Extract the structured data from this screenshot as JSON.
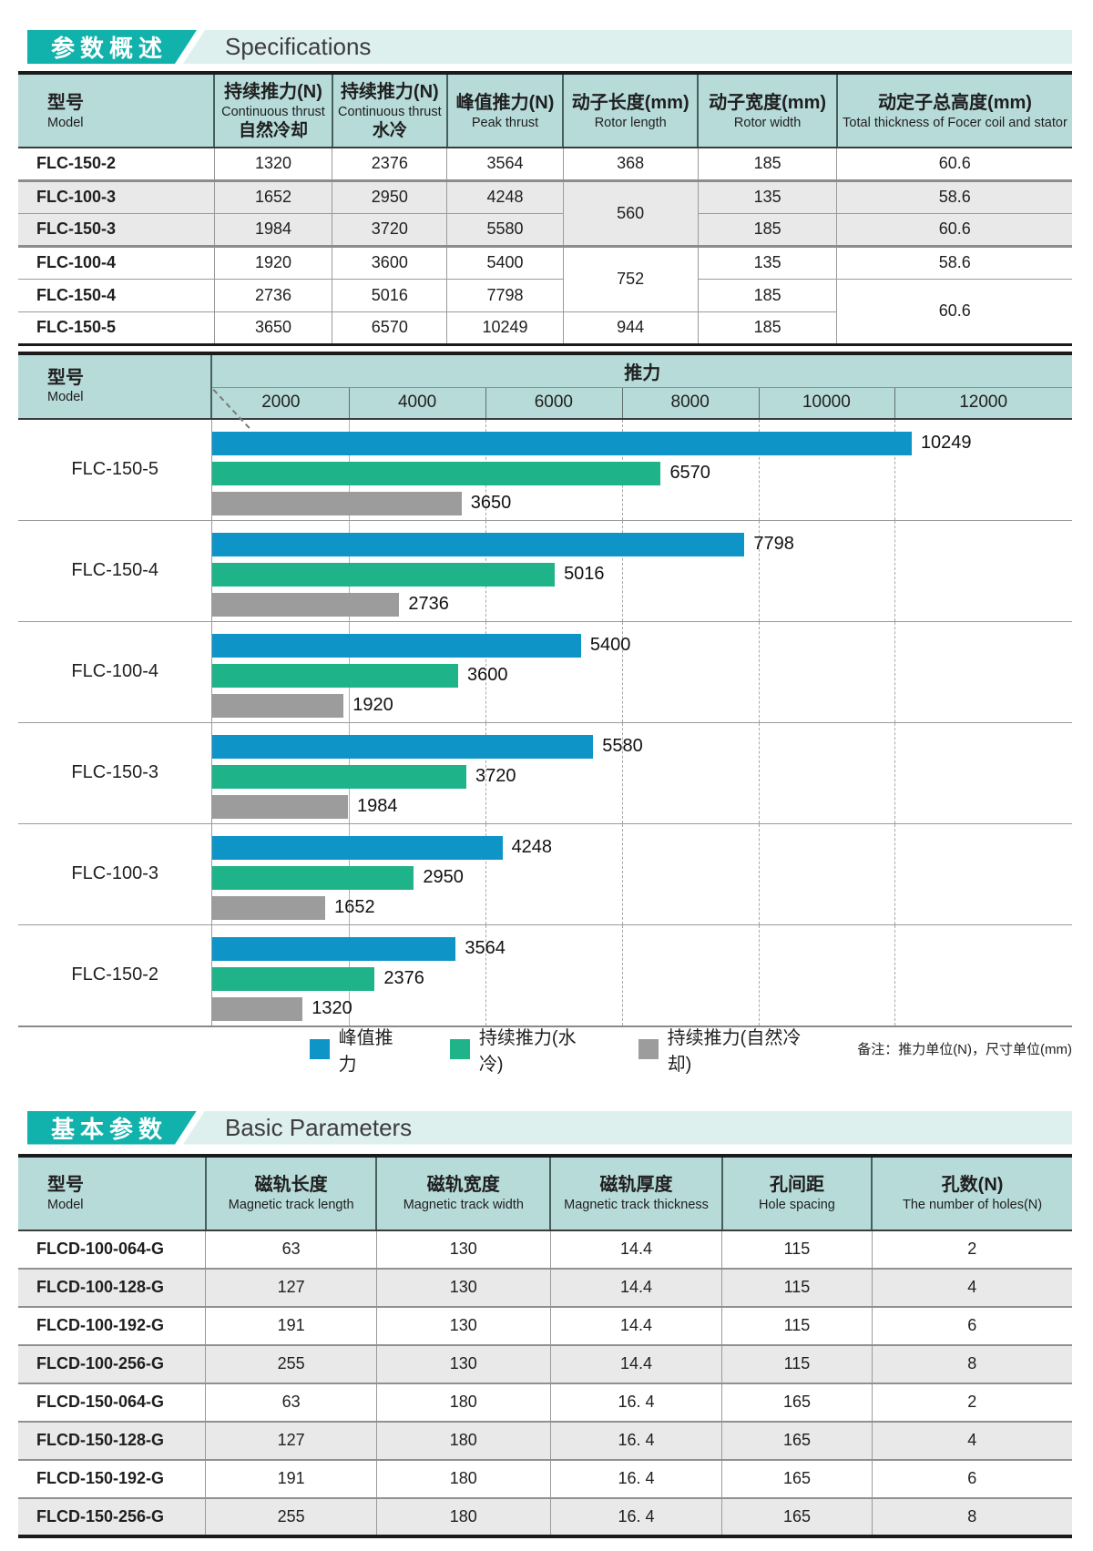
{
  "sections": {
    "spec": {
      "badge": "参数概述",
      "title": "Specifications"
    },
    "basic": {
      "badge": "基本参数",
      "title": "Basic Parameters"
    }
  },
  "spec_table": {
    "columns": {
      "model": {
        "zh": "型号",
        "en": "Model"
      },
      "thrust_natural": {
        "zh": "持续推力(N)",
        "en": "Continuous thrust",
        "sub": "自然冷却"
      },
      "thrust_water": {
        "zh": "持续推力(N)",
        "en": "Continuous thrust",
        "sub": "水冷"
      },
      "peak": {
        "zh": "峰值推力(N)",
        "en": "Peak thrust"
      },
      "rotor_length": {
        "zh": "动子长度(mm)",
        "en": "Rotor length"
      },
      "rotor_width": {
        "zh": "动子宽度(mm)",
        "en": "Rotor width"
      },
      "total_height": {
        "zh": "动定子总高度(mm)",
        "en": "Total thickness of  Focer coil and stator"
      }
    },
    "rows": [
      {
        "model": "FLC-150-2",
        "natural": "1320",
        "water": "2376",
        "peak": "3564",
        "length": "368",
        "width": "185",
        "total": "60.6"
      },
      {
        "model": "FLC-100-3",
        "natural": "1652",
        "water": "2950",
        "peak": "4248",
        "length": "560",
        "width": "135",
        "total": "58.6"
      },
      {
        "model": "FLC-150-3",
        "natural": "1984",
        "water": "3720",
        "peak": "5580",
        "width": "185",
        "total": "60.6"
      },
      {
        "model": "FLC-100-4",
        "natural": "1920",
        "water": "3600",
        "peak": "5400",
        "length": "752",
        "width": "135",
        "total": "58.6"
      },
      {
        "model": "FLC-150-4",
        "natural": "2736",
        "water": "5016",
        "peak": "7798",
        "width": "185",
        "total": "60.6"
      },
      {
        "model": "FLC-150-5",
        "natural": "3650",
        "water": "6570",
        "peak": "10249",
        "length": "944",
        "width": "185"
      }
    ]
  },
  "chart_data": {
    "type": "bar",
    "title": "推力",
    "corner": {
      "zh": "型号",
      "en": "Model"
    },
    "axis": {
      "ticks": [
        2000,
        4000,
        6000,
        8000,
        10000,
        12000
      ],
      "max": 12600,
      "unit": "N"
    },
    "categories": [
      "FLC-150-5",
      "FLC-150-4",
      "FLC-100-4",
      "FLC-150-3",
      "FLC-100-3",
      "FLC-150-2"
    ],
    "series": [
      {
        "key": "peak",
        "name": "峰值推力",
        "color": "#0f94c7"
      },
      {
        "key": "water",
        "name": "持续推力(水冷)",
        "color": "#1fb389"
      },
      {
        "key": "natural",
        "name": "持续推力(自然冷却)",
        "color": "#9c9c9c"
      }
    ],
    "values": {
      "peak": [
        10249,
        7798,
        5400,
        5580,
        4248,
        3564
      ],
      "water": [
        6570,
        5016,
        3600,
        3720,
        2950,
        2376
      ],
      "natural": [
        3650,
        2736,
        1920,
        1984,
        1652,
        1320
      ]
    },
    "note": "备注：推力单位(N)，尺寸单位(mm)"
  },
  "basic_table": {
    "columns": {
      "model": {
        "zh": "型号",
        "en": "Model"
      },
      "length": {
        "zh": "磁轨长度",
        "en": "Magnetic track length"
      },
      "width": {
        "zh": "磁轨宽度",
        "en": "Magnetic track width"
      },
      "thickness": {
        "zh": "磁轨厚度",
        "en": "Magnetic track thickness"
      },
      "spacing": {
        "zh": "孔间距",
        "en": "Hole spacing"
      },
      "holes": {
        "zh": "孔数(N)",
        "en": "The number of holes(N)"
      }
    },
    "rows": [
      {
        "model": "FLCD-100-064-G",
        "length": "63",
        "width": "130",
        "thickness": "14.4",
        "spacing": "115",
        "holes": "2"
      },
      {
        "model": "FLCD-100-128-G",
        "length": "127",
        "width": "130",
        "thickness": "14.4",
        "spacing": "115",
        "holes": "4"
      },
      {
        "model": "FLCD-100-192-G",
        "length": "191",
        "width": "130",
        "thickness": "14.4",
        "spacing": "115",
        "holes": "6"
      },
      {
        "model": "FLCD-100-256-G",
        "length": "255",
        "width": "130",
        "thickness": "14.4",
        "spacing": "115",
        "holes": "8"
      },
      {
        "model": "FLCD-150-064-G",
        "length": "63",
        "width": "180",
        "thickness": "16. 4",
        "spacing": "165",
        "holes": "2"
      },
      {
        "model": "FLCD-150-128-G",
        "length": "127",
        "width": "180",
        "thickness": "16. 4",
        "spacing": "165",
        "holes": "4"
      },
      {
        "model": "FLCD-150-192-G",
        "length": "191",
        "width": "180",
        "thickness": "16. 4",
        "spacing": "165",
        "holes": "6"
      },
      {
        "model": "FLCD-150-256-G",
        "length": "255",
        "width": "180",
        "thickness": "16. 4",
        "spacing": "165",
        "holes": "8"
      }
    ]
  }
}
